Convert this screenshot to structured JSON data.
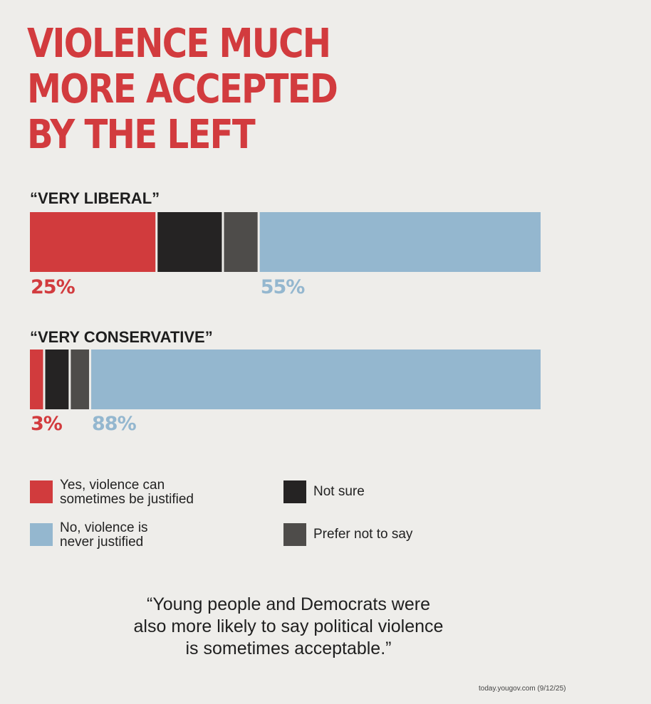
{
  "title_lines": [
    "VIOLENCE MUCH",
    "MORE ACCEPTED",
    "BY THE LEFT"
  ],
  "quote_lines": [
    "“Young people and Democrats were",
    "also more likely to say political violence",
    "is sometimes acceptable.”"
  ],
  "source": "today.yougov.com (9/12/25)",
  "colors": {
    "yes": "#d13b3d",
    "not_sure": "#252323",
    "prefer_not": "#4e4c4a",
    "no": "#94b7cf",
    "title": "#d23b3e"
  },
  "chart_data": {
    "type": "bar",
    "stacked": true,
    "orientation": "horizontal",
    "title": "VIOLENCE MUCH MORE ACCEPTED BY THE LEFT",
    "unit": "%",
    "xlim": [
      0,
      100
    ],
    "categories": [
      "“VERY LIBERAL”",
      "“VERY CONSERVATIVE”"
    ],
    "series": [
      {
        "name": "Yes, violence can sometimes be justified",
        "key": "yes",
        "values": [
          25,
          3
        ]
      },
      {
        "name": "Not sure",
        "key": "not_sure",
        "values": [
          13,
          5
        ]
      },
      {
        "name": "Prefer not to say",
        "key": "prefer_not",
        "values": [
          7,
          4
        ]
      },
      {
        "name": "No, violence is never justified",
        "key": "no",
        "values": [
          55,
          88
        ]
      }
    ],
    "data_labels": [
      {
        "category": 0,
        "series": "yes",
        "text": "25%"
      },
      {
        "category": 0,
        "series": "no",
        "text": "55%"
      },
      {
        "category": 1,
        "series": "yes",
        "text": "3%"
      },
      {
        "category": 1,
        "series": "no",
        "text": "88%"
      }
    ],
    "legend": [
      {
        "key": "yes",
        "lines": [
          "Yes, violence can",
          "sometimes be justified"
        ]
      },
      {
        "key": "not_sure",
        "lines": [
          "Not sure"
        ]
      },
      {
        "key": "no",
        "lines": [
          "No, violence is",
          "never justified"
        ]
      },
      {
        "key": "prefer_not",
        "lines": [
          "Prefer not to say"
        ]
      }
    ],
    "legend_position": "bottom"
  }
}
